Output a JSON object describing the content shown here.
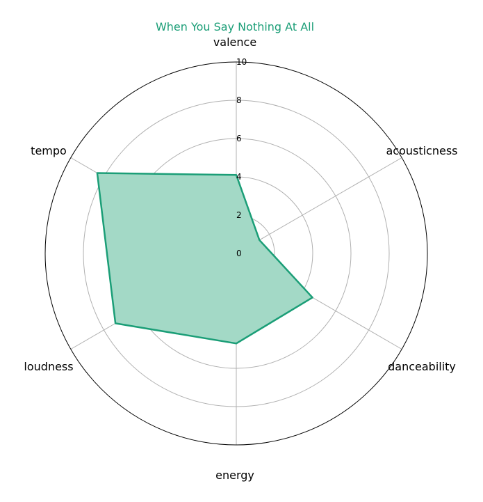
{
  "chart_data": {
    "type": "radar",
    "title": "When You Say Nothing At All",
    "axes": [
      "valence",
      "acousticness",
      "danceability",
      "energy",
      "loudness",
      "tempo"
    ],
    "series": [
      {
        "values": [
          4.1,
          1.4,
          4.6,
          4.7,
          7.3,
          8.4
        ]
      }
    ],
    "rticks": [
      "0",
      "2",
      "4",
      "6",
      "8",
      "10"
    ],
    "rlim": [
      0,
      10
    ],
    "grid": true,
    "colors": {
      "series": "#1b9e77",
      "fill": "#a3d9c6",
      "grid": "#b0b0b0",
      "outer": "#000000",
      "title": "#1b9e77"
    }
  }
}
